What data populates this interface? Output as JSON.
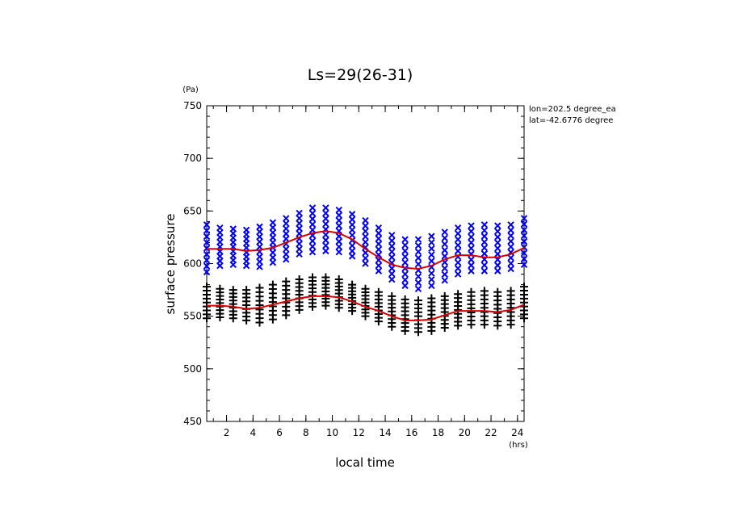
{
  "chart_data": {
    "type": "scatter",
    "title": "Ls=29(26-31)",
    "xlabel": "local time",
    "ylabel": "surface pressure",
    "x_unit": "(hrs)",
    "y_unit": "(Pa)",
    "annotations": [
      "lon=202.5 degree_ea",
      "lat=-42.6776 degree"
    ],
    "xlim": [
      0.5,
      24.5
    ],
    "ylim": [
      450,
      750
    ],
    "x_ticks": [
      2,
      4,
      6,
      8,
      10,
      12,
      14,
      16,
      18,
      20,
      22,
      24
    ],
    "y_ticks": [
      450,
      500,
      550,
      600,
      650,
      700,
      750
    ],
    "colors": {
      "blue_markers": "#0000ff",
      "black_markers": "#000000",
      "fit_line": "#dd0000"
    },
    "series": [
      {
        "marker": "x",
        "color": "#0000ff",
        "x": [
          0.5,
          1.5,
          2.5,
          3.5,
          4.5,
          5.5,
          6.5,
          7.5,
          8.5,
          9.5,
          10.5,
          11.5,
          12.5,
          13.5,
          14.5,
          15.5,
          16.5,
          17.5,
          18.5,
          19.5,
          20.5,
          21.5,
          22.5,
          23.5,
          24.5
        ],
        "y_min": [
          592,
          598,
          599,
          598,
          597,
          601,
          604,
          609,
          611,
          612,
          611,
          607,
          600,
          593,
          585,
          579,
          576,
          579,
          584,
          590,
          593,
          593,
          593,
          595,
          599
        ],
        "y_max": [
          637,
          634,
          633,
          632,
          635,
          639,
          643,
          648,
          653,
          653,
          651,
          647,
          641,
          634,
          627,
          623,
          623,
          626,
          630,
          634,
          636,
          637,
          636,
          637,
          643
        ]
      },
      {
        "marker": "+",
        "color": "#000000",
        "x": [
          0.5,
          1.5,
          2.5,
          3.5,
          4.5,
          5.5,
          6.5,
          7.5,
          8.5,
          9.5,
          10.5,
          11.5,
          12.5,
          13.5,
          14.5,
          15.5,
          16.5,
          17.5,
          18.5,
          19.5,
          20.5,
          21.5,
          22.5,
          23.5,
          24.5
        ],
        "y_min": [
          548,
          549,
          548,
          546,
          544,
          547,
          551,
          556,
          559,
          560,
          558,
          555,
          550,
          545,
          540,
          536,
          535,
          536,
          539,
          541,
          542,
          542,
          541,
          542,
          548
        ],
        "y_max": [
          578,
          576,
          575,
          575,
          577,
          580,
          583,
          585,
          587,
          587,
          585,
          580,
          576,
          573,
          569,
          566,
          565,
          567,
          569,
          571,
          573,
          574,
          573,
          574,
          578
        ]
      },
      {
        "type": "line",
        "color": "#dd0000",
        "x": [
          0.5,
          1.5,
          2.5,
          3.5,
          4.5,
          5.5,
          6.5,
          7.5,
          8.5,
          9.5,
          10.5,
          11.5,
          12.5,
          13.5,
          14.5,
          15.5,
          16.5,
          17.5,
          18.5,
          19.5,
          20.5,
          21.5,
          22.5,
          23.5,
          24.5
        ],
        "y": [
          614,
          614,
          614,
          612,
          613,
          615,
          620,
          625,
          629,
          631,
          629,
          623,
          614,
          606,
          599,
          596,
          595,
          598,
          604,
          608,
          608,
          606,
          606,
          609,
          615
        ]
      },
      {
        "type": "line",
        "color": "#dd0000",
        "x": [
          0.5,
          1.5,
          2.5,
          3.5,
          4.5,
          5.5,
          6.5,
          7.5,
          8.5,
          9.5,
          10.5,
          11.5,
          12.5,
          13.5,
          14.5,
          15.5,
          16.5,
          17.5,
          18.5,
          19.5,
          20.5,
          21.5,
          22.5,
          23.5,
          24.5
        ],
        "y": [
          560,
          560,
          559,
          557,
          558,
          561,
          564,
          567,
          569,
          569,
          568,
          564,
          559,
          555,
          550,
          546,
          546,
          547,
          551,
          555,
          555,
          555,
          554,
          556,
          561
        ]
      }
    ]
  }
}
